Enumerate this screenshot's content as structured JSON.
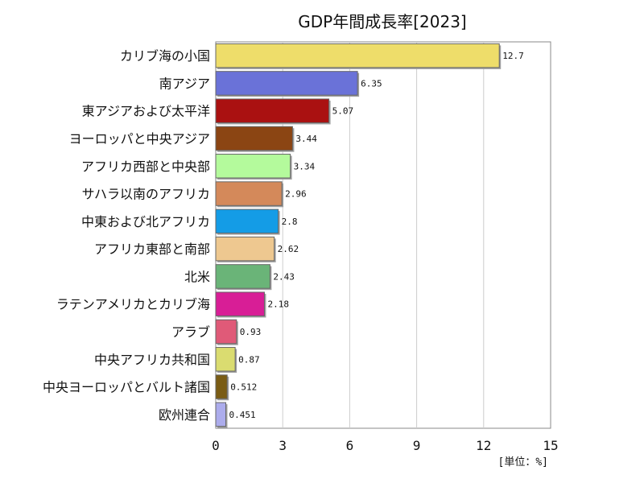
{
  "chart_data": {
    "type": "bar",
    "orientation": "horizontal",
    "title": "GDP年間成長率[2023]",
    "unit_label": "[単位：%]",
    "categories": [
      "カリブ海の小国",
      "南アジア",
      "東アジアおよび太平洋",
      "ヨーロッパと中央アジア",
      "アフリカ西部と中央部",
      "サハラ以南のアフリカ",
      "中東および北アフリカ",
      "アフリカ東部と南部",
      "北米",
      "ラテンアメリカとカリブ海",
      "アラブ",
      "中央アフリカ共和国",
      "中央ヨーロッパとバルト諸国",
      "欧州連合"
    ],
    "values": [
      12.7,
      6.35,
      5.07,
      3.44,
      3.34,
      2.96,
      2.8,
      2.62,
      2.43,
      2.18,
      0.93,
      0.87,
      0.512,
      0.451
    ],
    "value_labels": [
      "12.7",
      "6.35",
      "5.07",
      "3.44",
      "3.34",
      "2.96",
      "2.8",
      "2.62",
      "2.43",
      "2.18",
      "0.93",
      "0.87",
      "0.512",
      "0.451"
    ],
    "colors": [
      "#EEDD6A",
      "#6A72D8",
      "#AA1111",
      "#8B4513",
      "#B4FA9C",
      "#D4895A",
      "#149CE6",
      "#EEC890",
      "#6AB478",
      "#D81E96",
      "#E05A78",
      "#DADC70",
      "#7A5C14",
      "#ACACEC"
    ],
    "xlim": [
      0,
      15
    ],
    "xticks": [
      0,
      3,
      6,
      9,
      12,
      15
    ],
    "grid": true,
    "legend": "none"
  }
}
